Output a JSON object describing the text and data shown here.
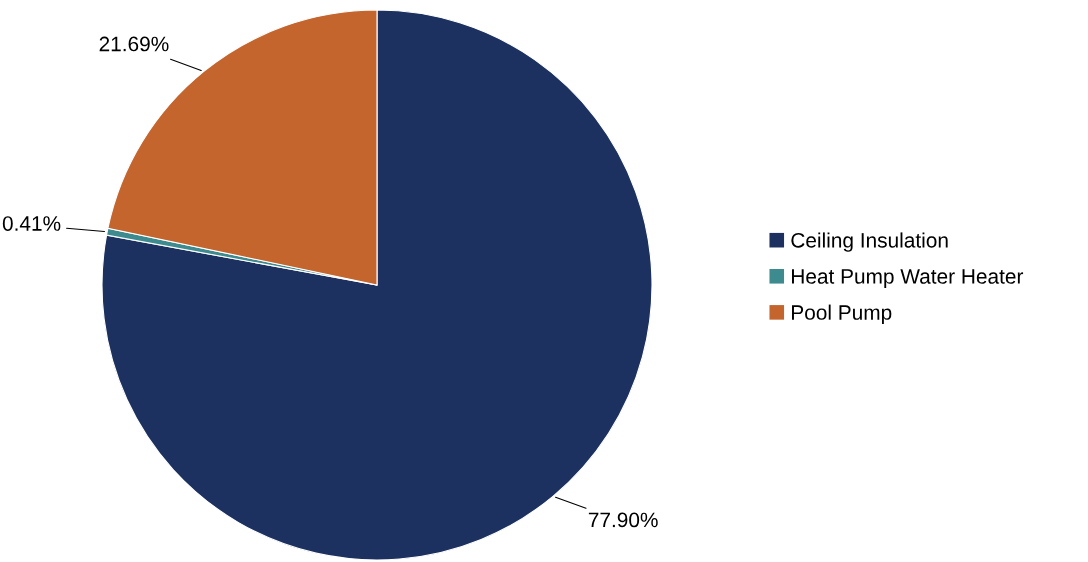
{
  "chart_data": {
    "type": "pie",
    "categories": [
      "Ceiling Insulation",
      "Heat Pump Water Heater",
      "Pool Pump"
    ],
    "values": [
      77.9,
      0.41,
      21.69
    ],
    "value_labels": [
      "77.90%",
      "0.41%",
      "21.69%"
    ],
    "colors": [
      "#1c3160",
      "#3d8b8f",
      "#c4652e"
    ],
    "legend": "right"
  }
}
